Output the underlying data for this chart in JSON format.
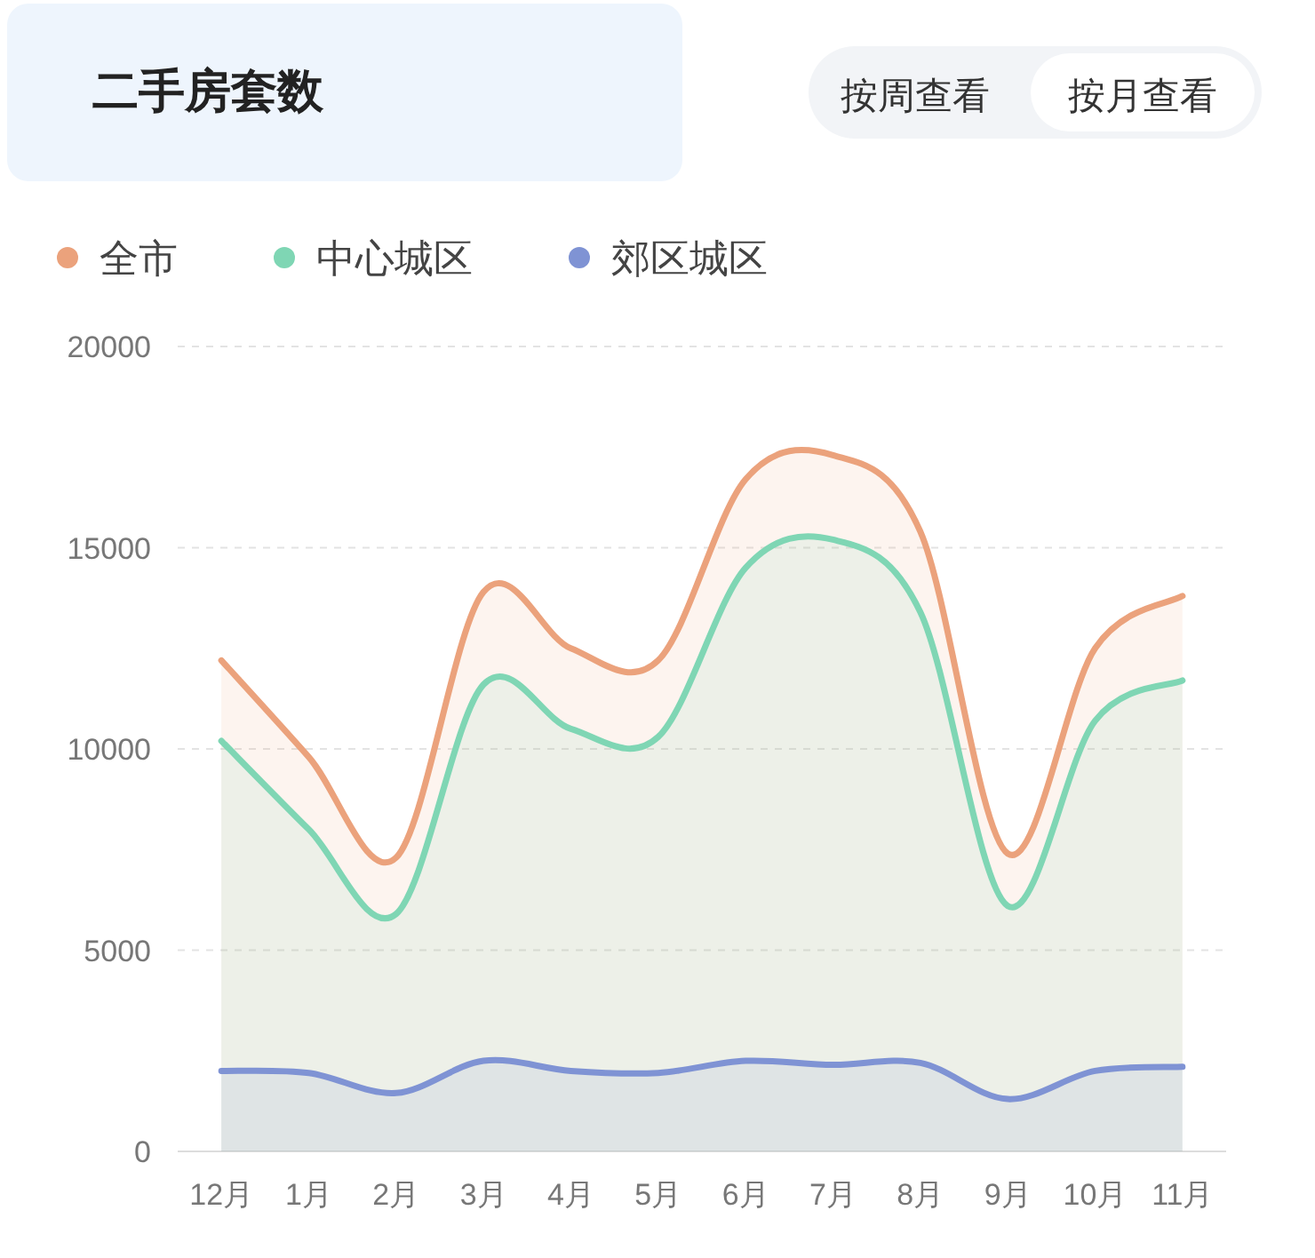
{
  "chart_data": {
    "type": "area",
    "title": "二手房套数",
    "annotations": [
      "按周查看",
      "按月查看"
    ],
    "categories": [
      "12月",
      "1月",
      "2月",
      "3月",
      "4月",
      "5月",
      "6月",
      "7月",
      "8月",
      "9月",
      "10月",
      "11月"
    ],
    "series": [
      {
        "name": "全市",
        "color": "#eba27c",
        "values": [
          12200,
          9800,
          7300,
          13900,
          12500,
          12200,
          16700,
          17300,
          15400,
          7400,
          12500,
          13800
        ]
      },
      {
        "name": "中心城区",
        "color": "#7fd6b4",
        "values": [
          10200,
          8000,
          5900,
          11600,
          10500,
          10300,
          14500,
          15200,
          13400,
          6100,
          10700,
          11700
        ]
      },
      {
        "name": "郊区城区",
        "color": "#7f93d4",
        "values": [
          2000,
          1950,
          1450,
          2250,
          2000,
          1950,
          2250,
          2150,
          2200,
          1300,
          2000,
          2100
        ]
      }
    ],
    "ylim": [
      0,
      20000
    ],
    "yticks": [
      0,
      5000,
      10000,
      15000,
      20000
    ],
    "grid": "y",
    "legend": "top left",
    "line_style": "solid",
    "marker": "none"
  }
}
